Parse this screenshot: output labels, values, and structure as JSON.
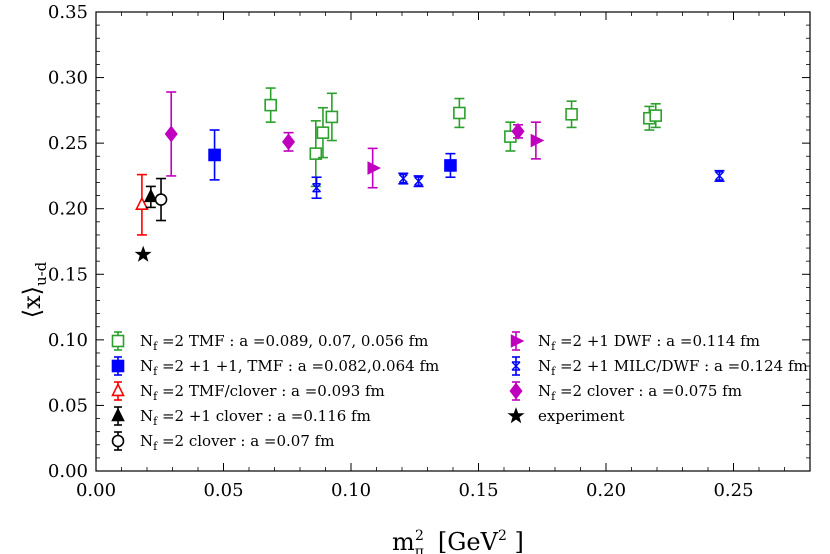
{
  "chart_data": {
    "type": "scatter",
    "xlabel_main": "m",
    "xlabel_sub": "π",
    "xlabel_sup": "2",
    "xlabel_unit": "[GeV",
    "xlabel_unit_sup": "2",
    "xlabel_unit_end": " ]",
    "ylabel_main": "⟨x⟩",
    "ylabel_sub": "u-d",
    "xlim": [
      0.0,
      0.28
    ],
    "ylim": [
      0.0,
      0.35
    ],
    "xticks": [
      "0.00",
      "0.05",
      "0.10",
      "0.15",
      "0.20",
      "0.25"
    ],
    "xtick_values": [
      0.0,
      0.05,
      0.1,
      0.15,
      0.2,
      0.25
    ],
    "yticks": [
      "0.00",
      "0.05",
      "0.10",
      "0.15",
      "0.20",
      "0.25",
      "0.30",
      "0.35"
    ],
    "ytick_values": [
      0.0,
      0.05,
      0.1,
      0.15,
      0.2,
      0.25,
      0.3,
      0.35
    ],
    "grid": false,
    "legend_placement": "bottom",
    "series": [
      {
        "name": "N_f =2 TMF : a =0.089, 0.07, 0.056 fm",
        "legend": [
          "N",
          "f",
          " =2  TMF :  a =0.089,  0.07,  0.056  fm"
        ],
        "color": "#2ca02c",
        "marker": "square-open",
        "points": [
          {
            "x": 0.0685,
            "y": 0.279,
            "err": 0.013
          },
          {
            "x": 0.0862,
            "y": 0.242,
            "err": 0.025
          },
          {
            "x": 0.089,
            "y": 0.258,
            "err": 0.019
          },
          {
            "x": 0.0925,
            "y": 0.27,
            "err": 0.018
          },
          {
            "x": 0.1425,
            "y": 0.273,
            "err": 0.011
          },
          {
            "x": 0.1625,
            "y": 0.255,
            "err": 0.011
          },
          {
            "x": 0.1865,
            "y": 0.272,
            "err": 0.01
          },
          {
            "x": 0.217,
            "y": 0.269,
            "err": 0.009
          },
          {
            "x": 0.2195,
            "y": 0.271,
            "err": 0.009
          }
        ]
      },
      {
        "name": "N_f =2 +1 +1, TMF : a =0.082,0.064 fm",
        "legend": [
          "N",
          "f",
          " =2 +1 +1,  TMF :  a =0.082,0.064  fm"
        ],
        "color": "#0000ff",
        "marker": "square-filled",
        "points": [
          {
            "x": 0.0465,
            "y": 0.241,
            "err": 0.019
          },
          {
            "x": 0.139,
            "y": 0.233,
            "err": 0.009
          }
        ]
      },
      {
        "name": "N_f =2 TMF/clover : a =0.093 fm",
        "legend": [
          "N",
          "f",
          " =2  TMF/clover :  a =0.093  fm"
        ],
        "color": "#ff0000",
        "marker": "triangle-open",
        "points": [
          {
            "x": 0.018,
            "y": 0.203,
            "err": 0.023
          }
        ]
      },
      {
        "name": "N_f =2 +1 clover : a =0.116 fm",
        "legend": [
          "N",
          "f",
          " =2 +1  clover :  a =0.116  fm"
        ],
        "color": "#000000",
        "marker": "triangle-filled",
        "points": [
          {
            "x": 0.0215,
            "y": 0.209,
            "err": 0.008
          }
        ]
      },
      {
        "name": "N_f =2 clover : a =0.07 fm",
        "legend": [
          "N",
          "f",
          " =2  clover :  a =0.07  fm"
        ],
        "color": "#000000",
        "marker": "circle-open",
        "points": [
          {
            "x": 0.0255,
            "y": 0.207,
            "err": 0.016
          }
        ]
      },
      {
        "name": "N_f =2 +1 DWF : a =0.114 fm",
        "legend": [
          "N",
          "f",
          " =2 +1  DWF :  a =0.114  fm"
        ],
        "color": "#bf00bf",
        "marker": "triangle-right",
        "points": [
          {
            "x": 0.1085,
            "y": 0.231,
            "err": 0.015
          },
          {
            "x": 0.1725,
            "y": 0.252,
            "err": 0.014
          }
        ]
      },
      {
        "name": "N_f =2 +1 MILC/DWF : a =0.124 fm",
        "legend": [
          "N",
          "f",
          " =2 +1  MILC/DWF :  a =0.124  fm"
        ],
        "color": "#0000ff",
        "marker": "x-tri",
        "points": [
          {
            "x": 0.0865,
            "y": 0.216,
            "err": 0.008
          },
          {
            "x": 0.1205,
            "y": 0.223,
            "err": 0.004
          },
          {
            "x": 0.1265,
            "y": 0.221,
            "err": 0.004
          },
          {
            "x": 0.2445,
            "y": 0.225,
            "err": 0.004
          }
        ]
      },
      {
        "name": "N_f =2 clover : a =0.075 fm",
        "legend": [
          "N",
          "f",
          " =2  clover :  a =0.075  fm"
        ],
        "color": "#bf00bf",
        "marker": "diamond-filled",
        "points": [
          {
            "x": 0.0295,
            "y": 0.257,
            "err": 0.032
          },
          {
            "x": 0.0755,
            "y": 0.251,
            "err": 0.007
          },
          {
            "x": 0.1655,
            "y": 0.259,
            "err": 0.005
          }
        ]
      },
      {
        "name": "experiment",
        "legend": [
          "experiment",
          "",
          ""
        ],
        "color": "#000000",
        "marker": "star",
        "points": [
          {
            "x": 0.0185,
            "y": 0.165,
            "err": 0.0
          }
        ]
      }
    ]
  }
}
